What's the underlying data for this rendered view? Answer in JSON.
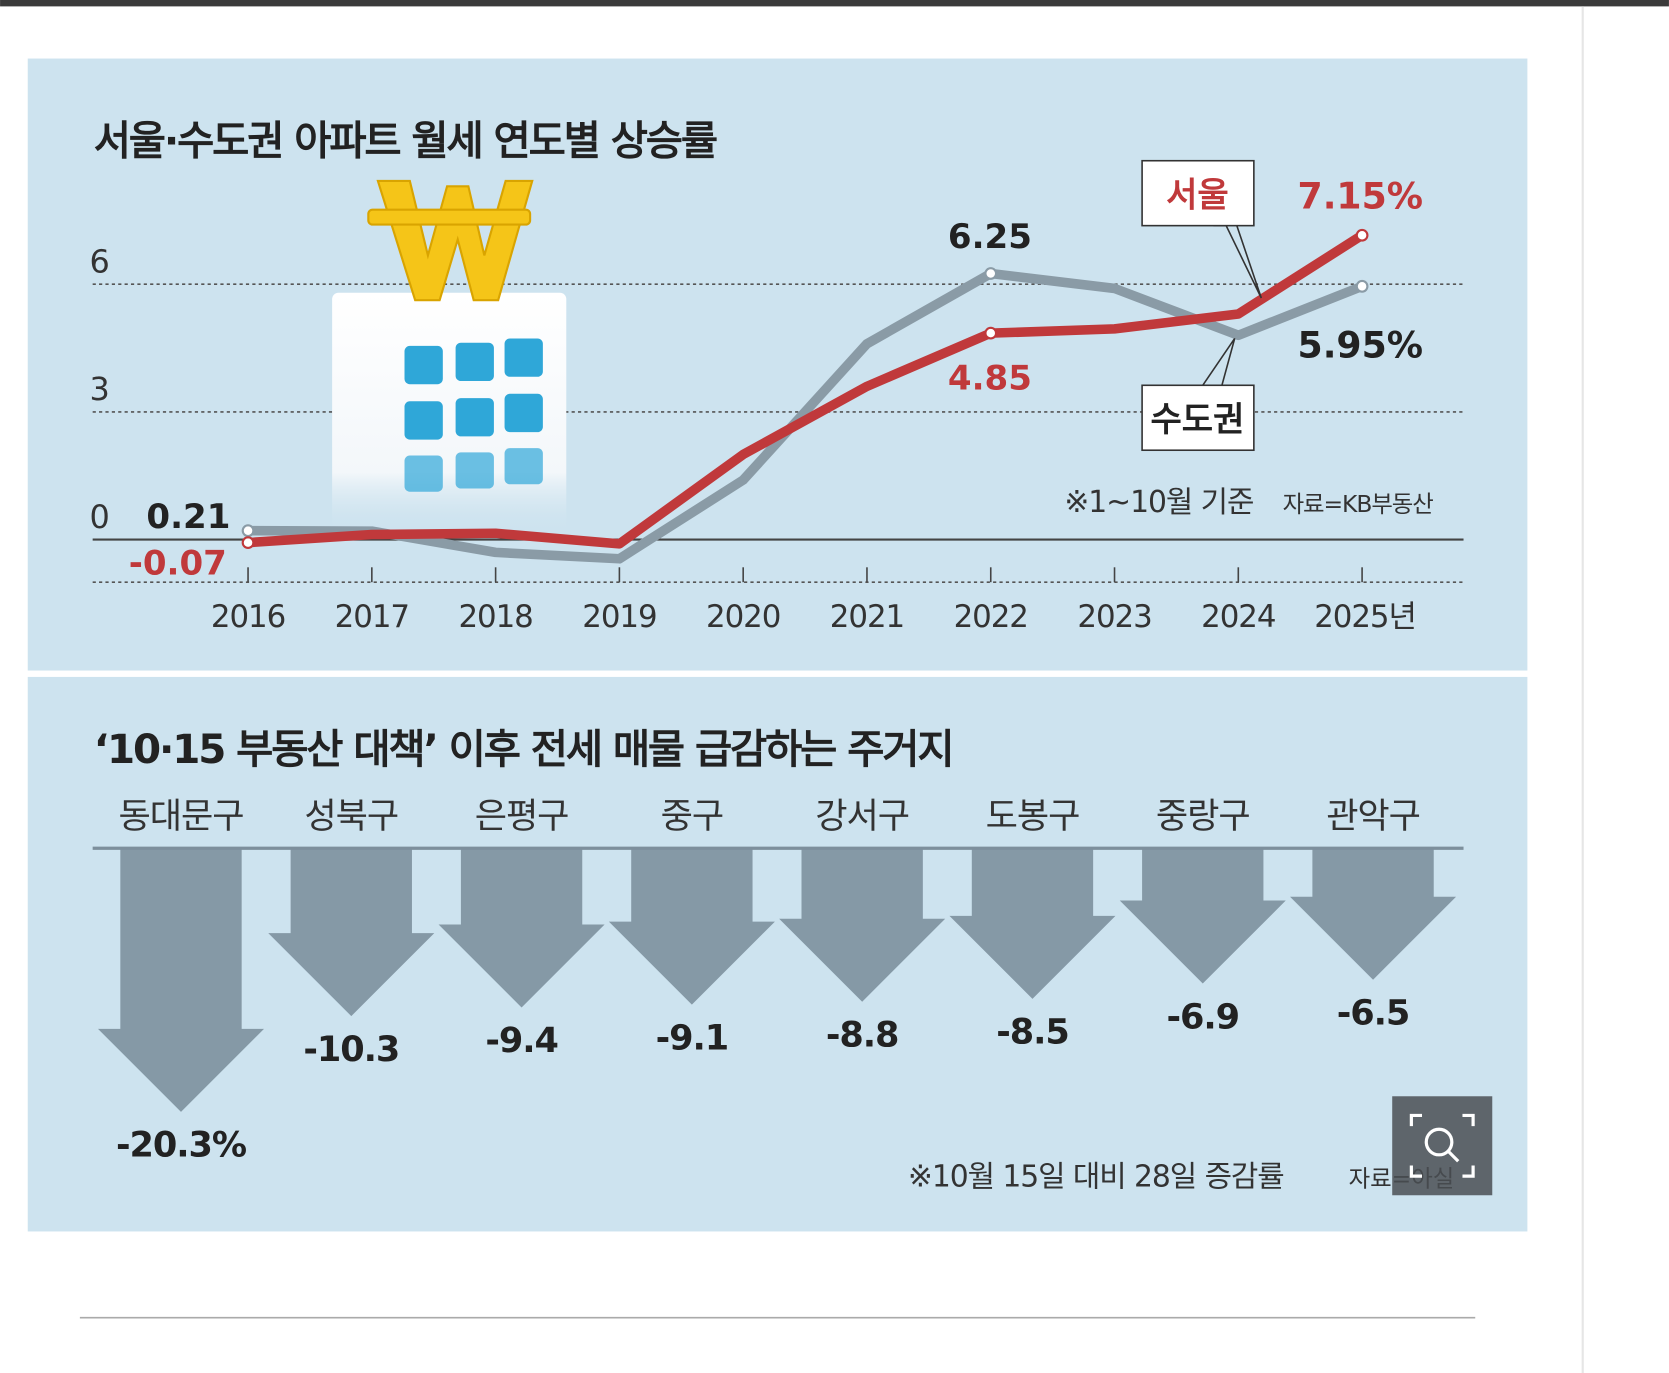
{
  "colors": {
    "seoul": "#c0393b",
    "metro": "#8a9ba6",
    "panel": "#cde3ef",
    "arrow": "#8599a6",
    "text": "#222222"
  },
  "chart_data": [
    {
      "type": "line",
      "title": "서울·수도권 아파트 월세 연도별 상승률",
      "categories": [
        "2016",
        "2017",
        "2018",
        "2019",
        "2020",
        "2021",
        "2022",
        "2023",
        "2024",
        "2025년"
      ],
      "ylim": [
        -1,
        7.5
      ],
      "yticks": [
        "6",
        "3",
        "0"
      ],
      "grid": true,
      "series": [
        {
          "name": "서울",
          "values": [
            -0.07,
            0.12,
            0.15,
            -0.1,
            2.0,
            3.6,
            4.85,
            4.95,
            5.3,
            7.15
          ]
        },
        {
          "name": "수도권",
          "values": [
            0.21,
            0.2,
            -0.3,
            -0.45,
            1.4,
            4.6,
            6.25,
            5.9,
            4.8,
            5.95
          ]
        }
      ],
      "annotations": {
        "seoul_start": "-0.07",
        "metro_start": "0.21",
        "seoul_2022": "4.85",
        "metro_2022": "6.25",
        "seoul_end": "7.15%",
        "metro_end": "5.95%"
      },
      "note": "※1~10월 기준",
      "source": "자료=KB부동산"
    },
    {
      "type": "bar",
      "title": "‘10·15 부동산 대책’ 이후 전세 매물 급감하는 주거지",
      "categories": [
        "동대문구",
        "성북구",
        "은평구",
        "중구",
        "강서구",
        "도봉구",
        "중랑구",
        "관악구"
      ],
      "values": [
        -20.3,
        -10.3,
        -9.4,
        -9.1,
        -8.8,
        -8.5,
        -6.9,
        -6.5
      ],
      "labels": [
        "-20.3%",
        "-10.3",
        "-9.4",
        "-9.1",
        "-8.8",
        "-8.5",
        "-6.9",
        "-6.5"
      ],
      "note": "※10월 15일 대비 28일 증감률",
      "source": "자료=아실"
    }
  ],
  "zoom_button": {
    "icon": "magnifier-zoom-icon"
  }
}
